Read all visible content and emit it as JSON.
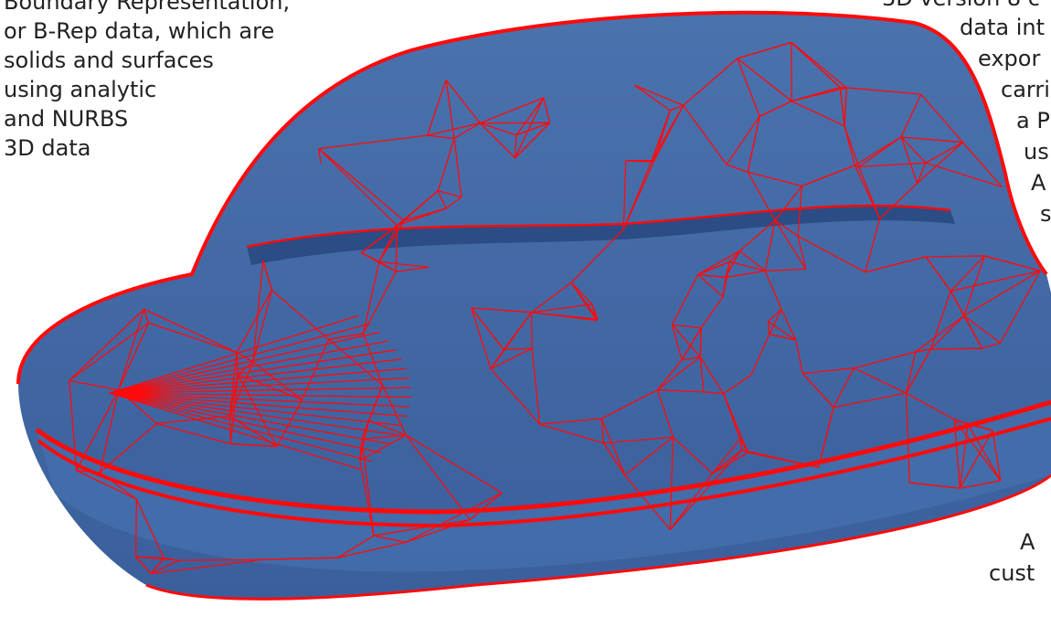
{
  "left_text": {
    "lines": [
      "Boundary Representation,",
      "or B-Rep data, which are",
      "solids and surfaces",
      "using analytic",
      "and NURBS",
      "3D data"
    ]
  },
  "right_text": {
    "lines": [
      "3D version 8 c",
      "data int",
      "expor",
      "carri",
      "a P",
      "us",
      "A",
      "s",
      "A",
      "cust"
    ]
  },
  "colors": {
    "surface": "#3f66a3",
    "surface_dark": "#2a4f8f",
    "mesh": "#ff0a0a",
    "text": "#222222"
  }
}
